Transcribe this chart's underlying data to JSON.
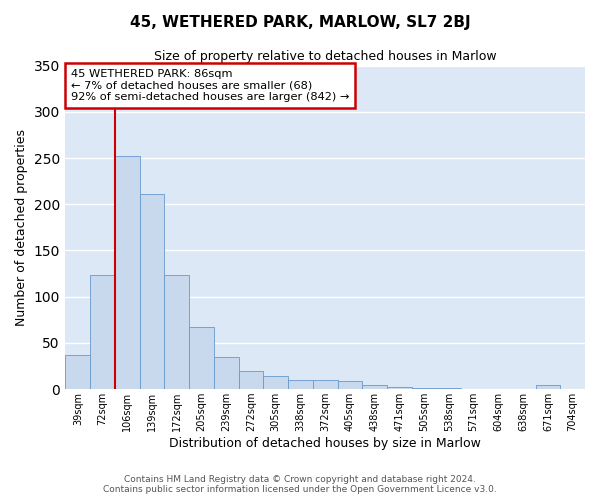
{
  "title": "45, WETHERED PARK, MARLOW, SL7 2BJ",
  "subtitle": "Size of property relative to detached houses in Marlow",
  "xlabel": "Distribution of detached houses by size in Marlow",
  "ylabel": "Number of detached properties",
  "bar_color": "#c8d9ee",
  "bar_edge_color": "#6699cc",
  "background_color": "#dce8f5",
  "grid_color": "#ffffff",
  "fig_background": "#ffffff",
  "categories": [
    "39sqm",
    "72sqm",
    "106sqm",
    "139sqm",
    "172sqm",
    "205sqm",
    "239sqm",
    "272sqm",
    "305sqm",
    "338sqm",
    "372sqm",
    "405sqm",
    "438sqm",
    "471sqm",
    "505sqm",
    "538sqm",
    "571sqm",
    "604sqm",
    "638sqm",
    "671sqm",
    "704sqm"
  ],
  "values": [
    37,
    124,
    252,
    211,
    124,
    67,
    35,
    20,
    14,
    10,
    10,
    9,
    4,
    2,
    1,
    1,
    0,
    0,
    0,
    4,
    0
  ],
  "ylim": [
    0,
    350
  ],
  "yticks": [
    0,
    50,
    100,
    150,
    200,
    250,
    300,
    350
  ],
  "red_line_x": 1.5,
  "annotation_title": "45 WETHERED PARK: 86sqm",
  "annotation_line1": "← 7% of detached houses are smaller (68)",
  "annotation_line2": "92% of semi-detached houses are larger (842) →",
  "annotation_box_color": "#ffffff",
  "annotation_box_edge": "#cc0000",
  "red_line_color": "#cc0000",
  "footer_line1": "Contains HM Land Registry data © Crown copyright and database right 2024.",
  "footer_line2": "Contains public sector information licensed under the Open Government Licence v3.0."
}
